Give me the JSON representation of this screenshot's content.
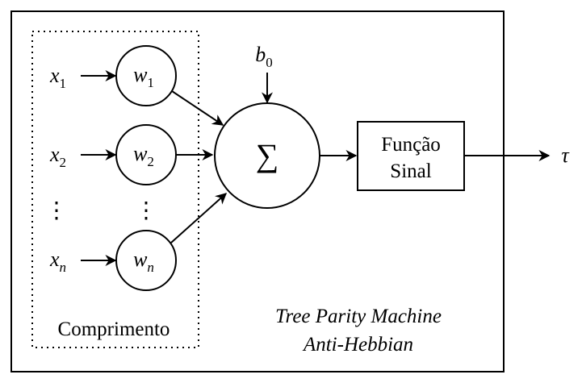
{
  "inputs": [
    {
      "base": "x",
      "sub": "1"
    },
    {
      "base": "x",
      "sub": "2"
    },
    {
      "base": "x",
      "sub": "n"
    }
  ],
  "weights": [
    {
      "base": "w",
      "sub": "1"
    },
    {
      "base": "w",
      "sub": "2"
    },
    {
      "base": "w",
      "sub": "n"
    }
  ],
  "ellipsis": "⋮",
  "bias": {
    "base": "b",
    "sub": "0"
  },
  "sum_symbol": "∑",
  "function_box": {
    "line1": "Função",
    "line2": "Sinal"
  },
  "output": "τ",
  "group_label": "Comprimento",
  "caption": {
    "line1": "Tree Parity Machine",
    "line2": "Anti-Hebbian"
  }
}
